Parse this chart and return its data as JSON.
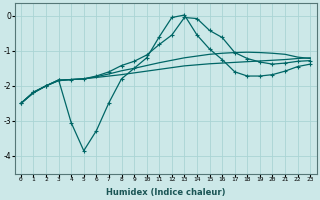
{
  "xlabel": "Humidex (Indice chaleur)",
  "background_color": "#cce8e8",
  "grid_color": "#aad4d4",
  "line_color": "#006666",
  "xlim": [
    -0.5,
    23.5
  ],
  "ylim": [
    -4.5,
    0.35
  ],
  "xticks": [
    0,
    1,
    2,
    3,
    4,
    5,
    6,
    7,
    8,
    9,
    10,
    11,
    12,
    13,
    14,
    15,
    16,
    17,
    18,
    19,
    20,
    21,
    22,
    23
  ],
  "yticks": [
    0,
    -1,
    -2,
    -3,
    -4
  ],
  "line1_x": [
    0,
    1,
    2,
    3,
    4,
    5,
    6,
    7,
    8,
    9,
    10,
    11,
    12,
    13,
    14,
    15,
    16,
    17,
    18,
    19,
    20,
    21,
    22,
    23
  ],
  "line1_y": [
    -2.5,
    -2.2,
    -2.0,
    -1.85,
    -1.82,
    -1.8,
    -1.76,
    -1.72,
    -1.68,
    -1.63,
    -1.58,
    -1.53,
    -1.48,
    -1.43,
    -1.4,
    -1.37,
    -1.35,
    -1.33,
    -1.31,
    -1.29,
    -1.27,
    -1.25,
    -1.22,
    -1.2
  ],
  "line2_x": [
    0,
    1,
    2,
    3,
    4,
    5,
    6,
    7,
    8,
    9,
    10,
    11,
    12,
    13,
    14,
    15,
    16,
    17,
    18,
    19,
    20,
    21,
    22,
    23
  ],
  "line2_y": [
    -2.5,
    -2.2,
    -2.0,
    -1.85,
    -1.82,
    -1.8,
    -1.74,
    -1.66,
    -1.57,
    -1.5,
    -1.42,
    -1.34,
    -1.27,
    -1.2,
    -1.15,
    -1.1,
    -1.07,
    -1.05,
    -1.04,
    -1.05,
    -1.07,
    -1.1,
    -1.18,
    -1.22
  ],
  "line3_x": [
    0,
    1,
    2,
    3,
    4,
    5,
    6,
    7,
    8,
    9,
    10,
    11,
    12,
    13,
    14,
    15,
    16,
    17,
    18,
    19,
    20,
    21,
    22,
    23
  ],
  "line3_y": [
    -2.5,
    -2.18,
    -2.0,
    -1.83,
    -1.82,
    -1.8,
    -1.72,
    -1.6,
    -1.42,
    -1.3,
    -1.12,
    -0.82,
    -0.55,
    -0.05,
    -0.08,
    -0.42,
    -0.62,
    -1.05,
    -1.22,
    -1.32,
    -1.38,
    -1.35,
    -1.3,
    -1.28
  ],
  "line4_x": [
    0,
    1,
    2,
    3,
    4,
    5,
    6,
    7,
    8,
    9,
    10,
    11,
    12,
    13,
    14,
    15,
    16,
    17,
    18,
    19,
    20,
    21,
    22,
    23
  ],
  "line4_y": [
    -2.5,
    -2.18,
    -2.0,
    -1.83,
    -3.05,
    -3.85,
    -3.28,
    -2.48,
    -1.8,
    -1.5,
    -1.2,
    -0.6,
    -0.05,
    0.02,
    -0.55,
    -0.95,
    -1.25,
    -1.6,
    -1.72,
    -1.72,
    -1.68,
    -1.58,
    -1.45,
    -1.38
  ]
}
